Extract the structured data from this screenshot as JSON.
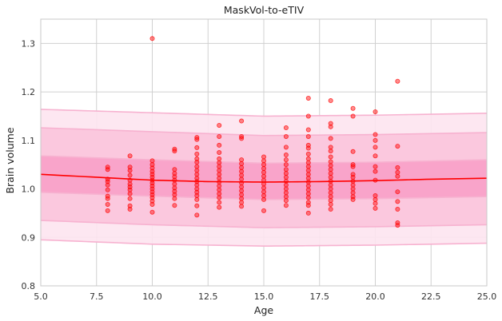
{
  "chart_data": {
    "type": "scatter",
    "title": "MaskVol-to-eTIV",
    "xlabel": "Age",
    "ylabel": "Brain volume",
    "xlim": [
      5,
      25
    ],
    "ylim": [
      0.8,
      1.35
    ],
    "grid": true,
    "xticks": [
      "5.0",
      "7.5",
      "10.0",
      "12.5",
      "15.0",
      "17.5",
      "20.0",
      "22.5",
      "25.0"
    ],
    "yticks": [
      "0.8",
      "0.9",
      "1.0",
      "1.1",
      "1.2",
      "1.3"
    ],
    "colors": {
      "points": "#ff0000",
      "median_line": "#ff0000",
      "band_inner": "#f8a0c8",
      "band_middle": "#fbc4dc",
      "band_outer": "#fde4ef",
      "band_edge": "#f7b2d0",
      "grid": "#d0d0d0",
      "axes": "#c8c8c8"
    },
    "median_curve": {
      "x": [
        5,
        7.5,
        10,
        12.5,
        15,
        17.5,
        20,
        22.5,
        25
      ],
      "y": [
        1.03,
        1.024,
        1.018,
        1.015,
        1.014,
        1.015,
        1.017,
        1.02,
        1.022
      ]
    },
    "bands": [
      {
        "name": "outer",
        "x": [
          5,
          10,
          15,
          20,
          25
        ],
        "lower": [
          0.895,
          0.886,
          0.882,
          0.884,
          0.888
        ],
        "upper": [
          1.164,
          1.157,
          1.15,
          1.152,
          1.156
        ]
      },
      {
        "name": "middle",
        "x": [
          5,
          10,
          15,
          20,
          25
        ],
        "lower": [
          0.935,
          0.926,
          0.92,
          0.922,
          0.926
        ],
        "upper": [
          1.126,
          1.118,
          1.11,
          1.112,
          1.116
        ]
      },
      {
        "name": "inner",
        "x": [
          5,
          10,
          15,
          20,
          25
        ],
        "lower": [
          0.993,
          0.985,
          0.978,
          0.98,
          0.984
        ],
        "upper": [
          1.068,
          1.06,
          1.053,
          1.055,
          1.06
        ]
      }
    ],
    "points": [
      {
        "x": 8,
        "y": 1.045
      },
      {
        "x": 8,
        "y": 1.04
      },
      {
        "x": 8,
        "y": 1.02
      },
      {
        "x": 8,
        "y": 1.015
      },
      {
        "x": 8,
        "y": 1.008
      },
      {
        "x": 8,
        "y": 0.998
      },
      {
        "x": 8,
        "y": 0.985
      },
      {
        "x": 8,
        "y": 0.98
      },
      {
        "x": 8,
        "y": 0.968
      },
      {
        "x": 8,
        "y": 0.955
      },
      {
        "x": 9,
        "y": 1.068
      },
      {
        "x": 9,
        "y": 1.045
      },
      {
        "x": 9,
        "y": 1.038
      },
      {
        "x": 9,
        "y": 1.028
      },
      {
        "x": 9,
        "y": 1.018
      },
      {
        "x": 9,
        "y": 1.01
      },
      {
        "x": 9,
        "y": 1.004
      },
      {
        "x": 9,
        "y": 0.998
      },
      {
        "x": 9,
        "y": 0.99
      },
      {
        "x": 9,
        "y": 0.98
      },
      {
        "x": 9,
        "y": 0.965
      },
      {
        "x": 9,
        "y": 0.958
      },
      {
        "x": 10,
        "y": 1.31
      },
      {
        "x": 10,
        "y": 1.058
      },
      {
        "x": 10,
        "y": 1.05
      },
      {
        "x": 10,
        "y": 1.043
      },
      {
        "x": 10,
        "y": 1.036
      },
      {
        "x": 10,
        "y": 1.03
      },
      {
        "x": 10,
        "y": 1.024
      },
      {
        "x": 10,
        "y": 1.018
      },
      {
        "x": 10,
        "y": 1.012
      },
      {
        "x": 10,
        "y": 1.006
      },
      {
        "x": 10,
        "y": 1.0
      },
      {
        "x": 10,
        "y": 0.994
      },
      {
        "x": 10,
        "y": 0.988
      },
      {
        "x": 10,
        "y": 0.982
      },
      {
        "x": 10,
        "y": 0.975
      },
      {
        "x": 10,
        "y": 0.968
      },
      {
        "x": 10,
        "y": 0.952
      },
      {
        "x": 11,
        "y": 1.082
      },
      {
        "x": 11,
        "y": 1.078
      },
      {
        "x": 11,
        "y": 1.04
      },
      {
        "x": 11,
        "y": 1.032
      },
      {
        "x": 11,
        "y": 1.025
      },
      {
        "x": 11,
        "y": 1.018
      },
      {
        "x": 11,
        "y": 1.01
      },
      {
        "x": 11,
        "y": 1.002
      },
      {
        "x": 11,
        "y": 0.995
      },
      {
        "x": 11,
        "y": 0.988
      },
      {
        "x": 11,
        "y": 0.98
      },
      {
        "x": 11,
        "y": 0.966
      },
      {
        "x": 12,
        "y": 1.106
      },
      {
        "x": 12,
        "y": 1.102
      },
      {
        "x": 12,
        "y": 1.085
      },
      {
        "x": 12,
        "y": 1.072
      },
      {
        "x": 12,
        "y": 1.062
      },
      {
        "x": 12,
        "y": 1.055
      },
      {
        "x": 12,
        "y": 1.046
      },
      {
        "x": 12,
        "y": 1.038
      },
      {
        "x": 12,
        "y": 1.03
      },
      {
        "x": 12,
        "y": 1.022
      },
      {
        "x": 12,
        "y": 1.015
      },
      {
        "x": 12,
        "y": 1.008
      },
      {
        "x": 12,
        "y": 1.0
      },
      {
        "x": 12,
        "y": 0.993
      },
      {
        "x": 12,
        "y": 0.986
      },
      {
        "x": 12,
        "y": 0.978
      },
      {
        "x": 12,
        "y": 0.965
      },
      {
        "x": 12,
        "y": 0.946
      },
      {
        "x": 13,
        "y": 1.131
      },
      {
        "x": 13,
        "y": 1.108
      },
      {
        "x": 13,
        "y": 1.09
      },
      {
        "x": 13,
        "y": 1.075
      },
      {
        "x": 13,
        "y": 1.062
      },
      {
        "x": 13,
        "y": 1.054
      },
      {
        "x": 13,
        "y": 1.046
      },
      {
        "x": 13,
        "y": 1.038
      },
      {
        "x": 13,
        "y": 1.03
      },
      {
        "x": 13,
        "y": 1.022
      },
      {
        "x": 13,
        "y": 1.014
      },
      {
        "x": 13,
        "y": 1.006
      },
      {
        "x": 13,
        "y": 0.998
      },
      {
        "x": 13,
        "y": 0.99
      },
      {
        "x": 13,
        "y": 0.982
      },
      {
        "x": 13,
        "y": 0.972
      },
      {
        "x": 13,
        "y": 0.962
      },
      {
        "x": 14,
        "y": 1.14
      },
      {
        "x": 14,
        "y": 1.108
      },
      {
        "x": 14,
        "y": 1.104
      },
      {
        "x": 14,
        "y": 1.06
      },
      {
        "x": 14,
        "y": 1.052
      },
      {
        "x": 14,
        "y": 1.044
      },
      {
        "x": 14,
        "y": 1.036
      },
      {
        "x": 14,
        "y": 1.028
      },
      {
        "x": 14,
        "y": 1.02
      },
      {
        "x": 14,
        "y": 1.012
      },
      {
        "x": 14,
        "y": 1.004
      },
      {
        "x": 14,
        "y": 0.996
      },
      {
        "x": 14,
        "y": 0.988
      },
      {
        "x": 14,
        "y": 0.98
      },
      {
        "x": 14,
        "y": 0.972
      },
      {
        "x": 14,
        "y": 0.964
      },
      {
        "x": 15,
        "y": 1.066
      },
      {
        "x": 15,
        "y": 1.058
      },
      {
        "x": 15,
        "y": 1.05
      },
      {
        "x": 15,
        "y": 1.042
      },
      {
        "x": 15,
        "y": 1.034
      },
      {
        "x": 15,
        "y": 1.026
      },
      {
        "x": 15,
        "y": 1.018
      },
      {
        "x": 15,
        "y": 1.01
      },
      {
        "x": 15,
        "y": 1.002
      },
      {
        "x": 15,
        "y": 0.994
      },
      {
        "x": 15,
        "y": 0.986
      },
      {
        "x": 15,
        "y": 0.978
      },
      {
        "x": 15,
        "y": 0.955
      },
      {
        "x": 16,
        "y": 1.126
      },
      {
        "x": 16,
        "y": 1.108
      },
      {
        "x": 16,
        "y": 1.086
      },
      {
        "x": 16,
        "y": 1.07
      },
      {
        "x": 16,
        "y": 1.06
      },
      {
        "x": 16,
        "y": 1.05
      },
      {
        "x": 16,
        "y": 1.04
      },
      {
        "x": 16,
        "y": 1.032
      },
      {
        "x": 16,
        "y": 1.024
      },
      {
        "x": 16,
        "y": 1.016
      },
      {
        "x": 16,
        "y": 1.008
      },
      {
        "x": 16,
        "y": 1.0
      },
      {
        "x": 16,
        "y": 0.992
      },
      {
        "x": 16,
        "y": 0.984
      },
      {
        "x": 16,
        "y": 0.976
      },
      {
        "x": 16,
        "y": 0.966
      },
      {
        "x": 17,
        "y": 1.187
      },
      {
        "x": 17,
        "y": 1.15
      },
      {
        "x": 17,
        "y": 1.122
      },
      {
        "x": 17,
        "y": 1.108
      },
      {
        "x": 17,
        "y": 1.09
      },
      {
        "x": 17,
        "y": 1.084
      },
      {
        "x": 17,
        "y": 1.072
      },
      {
        "x": 17,
        "y": 1.062
      },
      {
        "x": 17,
        "y": 1.054
      },
      {
        "x": 17,
        "y": 1.046
      },
      {
        "x": 17,
        "y": 1.038
      },
      {
        "x": 17,
        "y": 1.03
      },
      {
        "x": 17,
        "y": 1.022
      },
      {
        "x": 17,
        "y": 1.014
      },
      {
        "x": 17,
        "y": 1.006
      },
      {
        "x": 17,
        "y": 0.998
      },
      {
        "x": 17,
        "y": 0.99
      },
      {
        "x": 17,
        "y": 0.982
      },
      {
        "x": 17,
        "y": 0.972
      },
      {
        "x": 17,
        "y": 0.966
      },
      {
        "x": 17,
        "y": 0.95
      },
      {
        "x": 18,
        "y": 1.182
      },
      {
        "x": 18,
        "y": 1.135
      },
      {
        "x": 18,
        "y": 1.128
      },
      {
        "x": 18,
        "y": 1.104
      },
      {
        "x": 18,
        "y": 1.086
      },
      {
        "x": 18,
        "y": 1.078
      },
      {
        "x": 18,
        "y": 1.066
      },
      {
        "x": 18,
        "y": 1.056
      },
      {
        "x": 18,
        "y": 1.048
      },
      {
        "x": 18,
        "y": 1.04
      },
      {
        "x": 18,
        "y": 1.032
      },
      {
        "x": 18,
        "y": 1.024
      },
      {
        "x": 18,
        "y": 1.016
      },
      {
        "x": 18,
        "y": 1.008
      },
      {
        "x": 18,
        "y": 1.0
      },
      {
        "x": 18,
        "y": 0.992
      },
      {
        "x": 18,
        "y": 0.984
      },
      {
        "x": 18,
        "y": 0.976
      },
      {
        "x": 18,
        "y": 0.968
      },
      {
        "x": 18,
        "y": 0.958
      },
      {
        "x": 19,
        "y": 1.166
      },
      {
        "x": 19,
        "y": 1.15
      },
      {
        "x": 19,
        "y": 1.077
      },
      {
        "x": 19,
        "y": 1.05
      },
      {
        "x": 19,
        "y": 1.046
      },
      {
        "x": 19,
        "y": 1.03
      },
      {
        "x": 19,
        "y": 1.024
      },
      {
        "x": 19,
        "y": 1.016
      },
      {
        "x": 19,
        "y": 1.008
      },
      {
        "x": 19,
        "y": 1.0
      },
      {
        "x": 19,
        "y": 0.992
      },
      {
        "x": 19,
        "y": 0.984
      },
      {
        "x": 19,
        "y": 0.978
      },
      {
        "x": 20,
        "y": 1.159
      },
      {
        "x": 20,
        "y": 1.112
      },
      {
        "x": 20,
        "y": 1.1
      },
      {
        "x": 20,
        "y": 1.086
      },
      {
        "x": 20,
        "y": 1.068
      },
      {
        "x": 20,
        "y": 1.046
      },
      {
        "x": 20,
        "y": 1.036
      },
      {
        "x": 20,
        "y": 1.018
      },
      {
        "x": 20,
        "y": 0.986
      },
      {
        "x": 20,
        "y": 0.978
      },
      {
        "x": 20,
        "y": 0.97
      },
      {
        "x": 20,
        "y": 0.96
      },
      {
        "x": 21,
        "y": 1.222
      },
      {
        "x": 21,
        "y": 1.088
      },
      {
        "x": 21,
        "y": 1.044
      },
      {
        "x": 21,
        "y": 1.034
      },
      {
        "x": 21,
        "y": 1.026
      },
      {
        "x": 21,
        "y": 0.994
      },
      {
        "x": 21,
        "y": 0.974
      },
      {
        "x": 21,
        "y": 0.958
      },
      {
        "x": 21,
        "y": 0.93
      },
      {
        "x": 21,
        "y": 0.925
      }
    ]
  }
}
